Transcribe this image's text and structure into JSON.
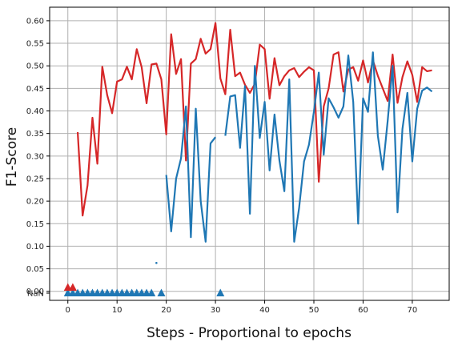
{
  "chart_data": {
    "type": "line",
    "xlabel": "Steps - Proportional to epochs",
    "ylabel": "F1-Score",
    "xlim": [
      -3.7,
      77.5
    ],
    "ylim": [
      -0.02,
      0.63
    ],
    "grid": true,
    "x_ticks": [
      0,
      10,
      20,
      30,
      40,
      50,
      60,
      70
    ],
    "y_ticks": [
      0.0,
      0.05,
      0.1,
      0.15,
      0.2,
      0.25,
      0.3,
      0.35,
      0.4,
      0.45,
      0.5,
      0.55,
      0.6
    ],
    "y_tick_labels": [
      "0.00",
      "0.05",
      "0.10",
      "0.15",
      "0.20",
      "0.25",
      "0.30",
      "0.35",
      "0.40",
      "0.45",
      "0.50",
      "0.55",
      "0.60"
    ],
    "nan_label": "NaN",
    "colors": {
      "red": "#d62728",
      "blue": "#1f77b4",
      "grid": "#b0b0b0"
    },
    "series": [
      {
        "color": "#d62728",
        "x": [
          0,
          1,
          2,
          3,
          4,
          5,
          6,
          7,
          8,
          9,
          10,
          11,
          12,
          13,
          14,
          15,
          16,
          17,
          18,
          19,
          20,
          21,
          22,
          23,
          24,
          25,
          26,
          27,
          28,
          29,
          30,
          31,
          32,
          33,
          34,
          35,
          36,
          37,
          38,
          39,
          40,
          41,
          42,
          43,
          44,
          45,
          46,
          47,
          48,
          49,
          50,
          51,
          52,
          53,
          54,
          55,
          56,
          57,
          58,
          59,
          60,
          61,
          62,
          63,
          64,
          65,
          66,
          67,
          68,
          69,
          70,
          71,
          72,
          73,
          74
        ],
        "y": [
          null,
          null,
          0.353,
          0.168,
          0.235,
          0.385,
          0.283,
          0.498,
          0.435,
          0.395,
          0.465,
          0.47,
          0.498,
          0.47,
          0.537,
          0.497,
          0.417,
          0.503,
          0.505,
          0.47,
          0.348,
          0.57,
          0.482,
          0.515,
          0.29,
          0.505,
          0.515,
          0.56,
          0.527,
          0.537,
          0.595,
          0.472,
          0.437,
          0.58,
          0.477,
          0.485,
          0.458,
          0.44,
          0.46,
          0.547,
          0.537,
          0.427,
          0.517,
          0.457,
          0.477,
          0.49,
          0.495,
          0.475,
          0.487,
          0.497,
          0.49,
          0.243,
          0.41,
          0.45,
          0.525,
          0.53,
          0.443,
          0.492,
          0.497,
          0.467,
          0.512,
          0.463,
          0.512,
          0.478,
          0.45,
          0.422,
          0.525,
          0.418,
          0.475,
          0.51,
          0.48,
          0.42,
          0.497,
          0.488,
          0.49
        ]
      },
      {
        "color": "#1f77b4",
        "x": [
          0,
          1,
          2,
          3,
          4,
          5,
          6,
          7,
          8,
          9,
          10,
          11,
          12,
          13,
          14,
          15,
          16,
          17,
          18,
          19,
          20,
          21,
          22,
          23,
          24,
          25,
          26,
          27,
          28,
          29,
          30,
          31,
          32,
          33,
          34,
          35,
          36,
          37,
          38,
          39,
          40,
          41,
          42,
          43,
          44,
          45,
          46,
          47,
          48,
          49,
          50,
          51,
          52,
          53,
          54,
          55,
          56,
          57,
          58,
          59,
          60,
          61,
          62,
          63,
          64,
          65,
          66,
          67,
          68,
          69,
          70,
          71,
          72,
          73,
          74
        ],
        "y": [
          null,
          null,
          null,
          null,
          null,
          null,
          null,
          null,
          null,
          null,
          null,
          null,
          null,
          null,
          null,
          null,
          null,
          null,
          0.063,
          null,
          0.258,
          0.133,
          0.25,
          0.295,
          0.41,
          0.12,
          0.405,
          0.2,
          0.11,
          0.328,
          0.342,
          null,
          0.345,
          0.432,
          0.435,
          0.318,
          0.455,
          0.172,
          0.5,
          0.34,
          0.42,
          0.268,
          0.392,
          0.29,
          0.222,
          0.47,
          0.11,
          0.185,
          0.288,
          0.325,
          0.398,
          0.485,
          0.303,
          0.428,
          0.408,
          0.385,
          0.41,
          0.523,
          0.42,
          0.15,
          0.428,
          0.398,
          0.53,
          0.345,
          0.27,
          0.378,
          0.5,
          0.175,
          0.36,
          0.44,
          0.288,
          0.405,
          0.445,
          0.452,
          0.443
        ]
      }
    ],
    "nan_markers": [
      {
        "color": "#d62728",
        "x": [
          0,
          1
        ]
      },
      {
        "color": "#1f77b4",
        "x": [
          0,
          1,
          2,
          3,
          4,
          5,
          6,
          7,
          8,
          9,
          10,
          11,
          12,
          13,
          14,
          15,
          16,
          17,
          19,
          31
        ]
      }
    ]
  }
}
